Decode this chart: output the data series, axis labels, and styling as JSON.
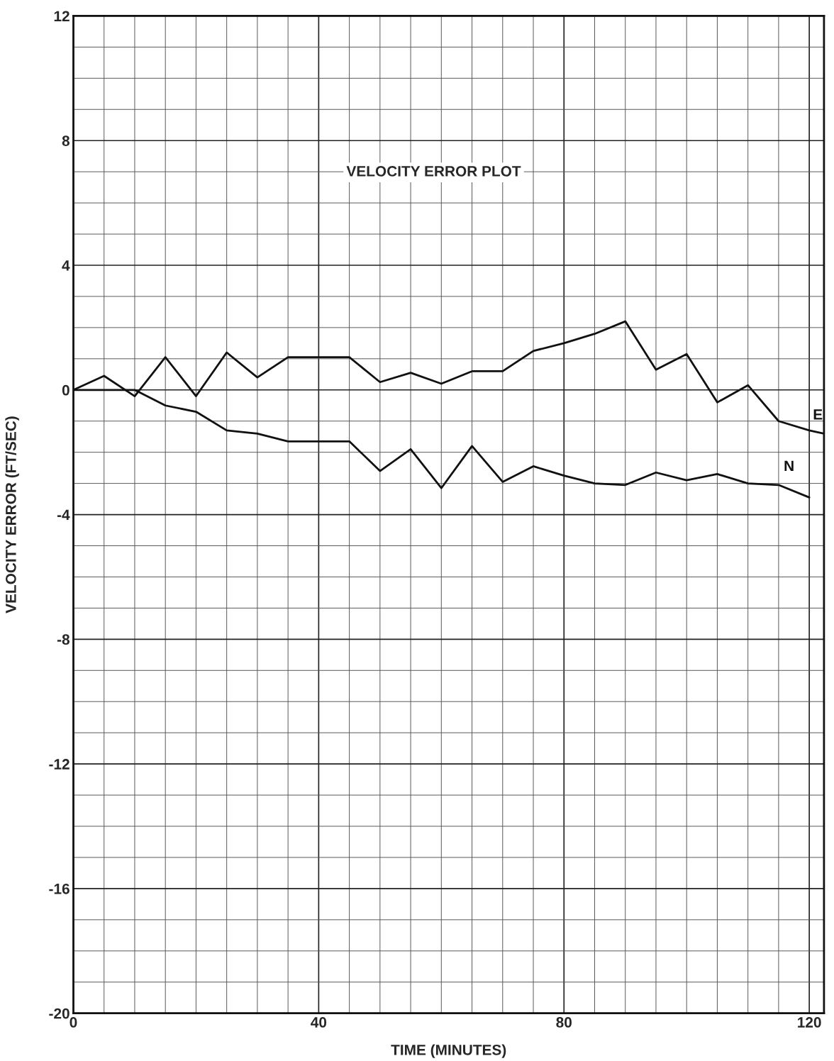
{
  "chart_data": {
    "type": "line",
    "title": "VELOCITY ERROR PLOT",
    "xlabel": "TIME (MINUTES)",
    "ylabel": "VELOCITY ERROR (FT/SEC)",
    "xlim": [
      0,
      122.4
    ],
    "ylim": [
      -20,
      12
    ],
    "xticks": [
      0,
      40,
      80,
      120
    ],
    "yticks": [
      -20,
      -16,
      -12,
      -8,
      -4,
      0,
      4,
      8,
      12
    ],
    "grid": true,
    "line_style": "solid",
    "series": [
      {
        "name": "E",
        "color": "#111111",
        "x": [
          0,
          5,
          10,
          15,
          20,
          25,
          30,
          35,
          40,
          45,
          50,
          55,
          60,
          65,
          70,
          75,
          80,
          85,
          90,
          95,
          100,
          105,
          110,
          115,
          120,
          122.4
        ],
        "values": [
          0,
          0.45,
          -0.2,
          1.05,
          -0.2,
          1.2,
          0.4,
          1.05,
          1.05,
          1.05,
          0.25,
          0.55,
          0.2,
          0.6,
          0.6,
          1.25,
          1.5,
          1.8,
          2.2,
          0.65,
          1.15,
          -0.4,
          0.15,
          -1.0,
          -1.3,
          -1.4
        ]
      },
      {
        "name": "N",
        "color": "#111111",
        "x": [
          0,
          5,
          10,
          15,
          20,
          25,
          30,
          35,
          40,
          45,
          50,
          55,
          60,
          65,
          70,
          75,
          80,
          85,
          90,
          95,
          100,
          105,
          110,
          115,
          120
        ],
        "values": [
          0,
          0,
          0,
          -0.5,
          -0.7,
          -1.3,
          -1.4,
          -1.65,
          -1.65,
          -1.65,
          -2.6,
          -1.9,
          -3.15,
          -1.8,
          -2.95,
          -2.45,
          -2.75,
          -3.0,
          -3.05,
          -2.65,
          -2.9,
          -2.7,
          -3.0,
          -3.05,
          -3.45
        ]
      }
    ]
  }
}
